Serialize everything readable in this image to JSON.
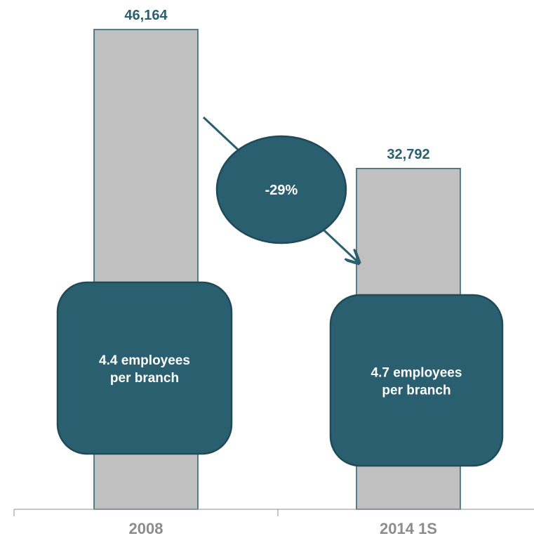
{
  "chart_data": {
    "type": "bar",
    "categories": [
      "2008",
      "2014 1S"
    ],
    "values": [
      46164,
      32792
    ],
    "value_labels": [
      "46,164",
      "32,792"
    ],
    "ylim": [
      0,
      46164
    ],
    "grid": false,
    "change_label": "-29%",
    "annotations": [
      {
        "line1": "4.4 employees",
        "line2": "per  branch"
      },
      {
        "line1": "4.7 employees",
        "line2": "per  branch"
      }
    ],
    "colors": {
      "bar_fill": "#c0c0c0",
      "bar_outline": "#2a5f70",
      "accent": "#2a5f70",
      "accent_outline": "#1f4a58",
      "value_text": "#2a5f70",
      "tick_text": "#8c8c8c",
      "axis": "#8c8c8c"
    }
  }
}
